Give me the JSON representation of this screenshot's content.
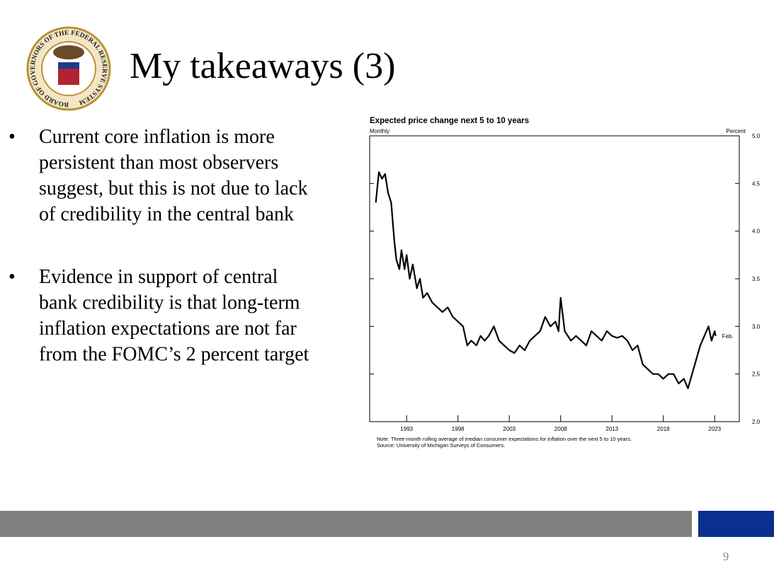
{
  "header": {
    "title": "My takeaways (3)",
    "seal_text": "BOARD OF GOVERNORS OF THE FEDERAL RESERVE SYSTEM"
  },
  "bullets": [
    {
      "lines": [
        "Current core inflation is more",
        "persistent than most observers",
        "suggest, but this is not due to lack",
        "of credibility in the central bank"
      ]
    },
    {
      "lines": [
        "Evidence in support of central",
        "bank credibility is that long-term",
        "inflation expectations are not far",
        "from the FOMC’s 2 percent target"
      ]
    }
  ],
  "page_number": "9",
  "chart_data": {
    "type": "line",
    "title": "Expected price change next 5 to 10 years",
    "subtitle": "Monthly",
    "y_axis_label": "Percent",
    "annotation": "Feb.",
    "note": "Note: Three-month rolling average of median consumer expectations for inflation over the next 5 to 10 years.",
    "source": "Source: University of Michigan Surveys of Consumers.",
    "color": "#000000",
    "x": [
      1990.0,
      1990.3,
      1990.6,
      1990.9,
      1991.2,
      1991.5,
      1991.8,
      1992.0,
      1992.3,
      1992.5,
      1992.8,
      1993.0,
      1993.3,
      1993.6,
      1994.0,
      1994.3,
      1994.6,
      1995.0,
      1995.5,
      1996.0,
      1996.5,
      1997.0,
      1997.5,
      1998.0,
      1998.5,
      1998.9,
      1999.3,
      1999.8,
      2000.2,
      2000.6,
      2001.0,
      2001.5,
      2002.0,
      2002.5,
      2003.0,
      2003.5,
      2004.0,
      2004.5,
      2005.0,
      2005.5,
      2006.0,
      2006.5,
      2007.0,
      2007.5,
      2007.8,
      2008.0,
      2008.4,
      2009.0,
      2009.5,
      2010.0,
      2010.5,
      2011.0,
      2011.5,
      2012.0,
      2012.5,
      2013.0,
      2013.5,
      2014.0,
      2014.5,
      2015.0,
      2015.5,
      2016.0,
      2016.5,
      2017.0,
      2017.5,
      2018.0,
      2018.5,
      2019.0,
      2019.5,
      2020.0,
      2020.4,
      2020.8,
      2021.2,
      2021.6,
      2022.0,
      2022.4,
      2022.7,
      2023.0,
      2023.1
    ],
    "values": [
      4.3,
      4.62,
      4.55,
      4.6,
      4.4,
      4.3,
      3.9,
      3.7,
      3.6,
      3.8,
      3.6,
      3.75,
      3.5,
      3.65,
      3.4,
      3.5,
      3.3,
      3.35,
      3.25,
      3.2,
      3.15,
      3.2,
      3.1,
      3.05,
      3.0,
      2.8,
      2.85,
      2.8,
      2.9,
      2.85,
      2.9,
      3.0,
      2.85,
      2.8,
      2.75,
      2.72,
      2.8,
      2.75,
      2.85,
      2.9,
      2.95,
      3.1,
      3.0,
      3.05,
      2.95,
      3.3,
      2.95,
      2.85,
      2.9,
      2.85,
      2.8,
      2.95,
      2.9,
      2.85,
      2.95,
      2.9,
      2.88,
      2.9,
      2.85,
      2.75,
      2.8,
      2.6,
      2.55,
      2.5,
      2.5,
      2.45,
      2.5,
      2.5,
      2.4,
      2.45,
      2.35,
      2.5,
      2.65,
      2.8,
      2.9,
      3.0,
      2.85,
      2.95,
      2.9
    ],
    "xlim": [
      1989.4,
      2025.4
    ],
    "xticks": [
      1993,
      1998,
      2003,
      2008,
      2013,
      2018,
      2023
    ],
    "ylim": [
      2,
      5
    ],
    "yticks": [
      {
        "value": 2,
        "label": "2.0"
      },
      2.5,
      {
        "value": 3,
        "label": "3.0"
      },
      3.5,
      {
        "value": 4,
        "label": "4.0"
      },
      4.5,
      {
        "value": 5,
        "label": "5.0"
      }
    ]
  }
}
